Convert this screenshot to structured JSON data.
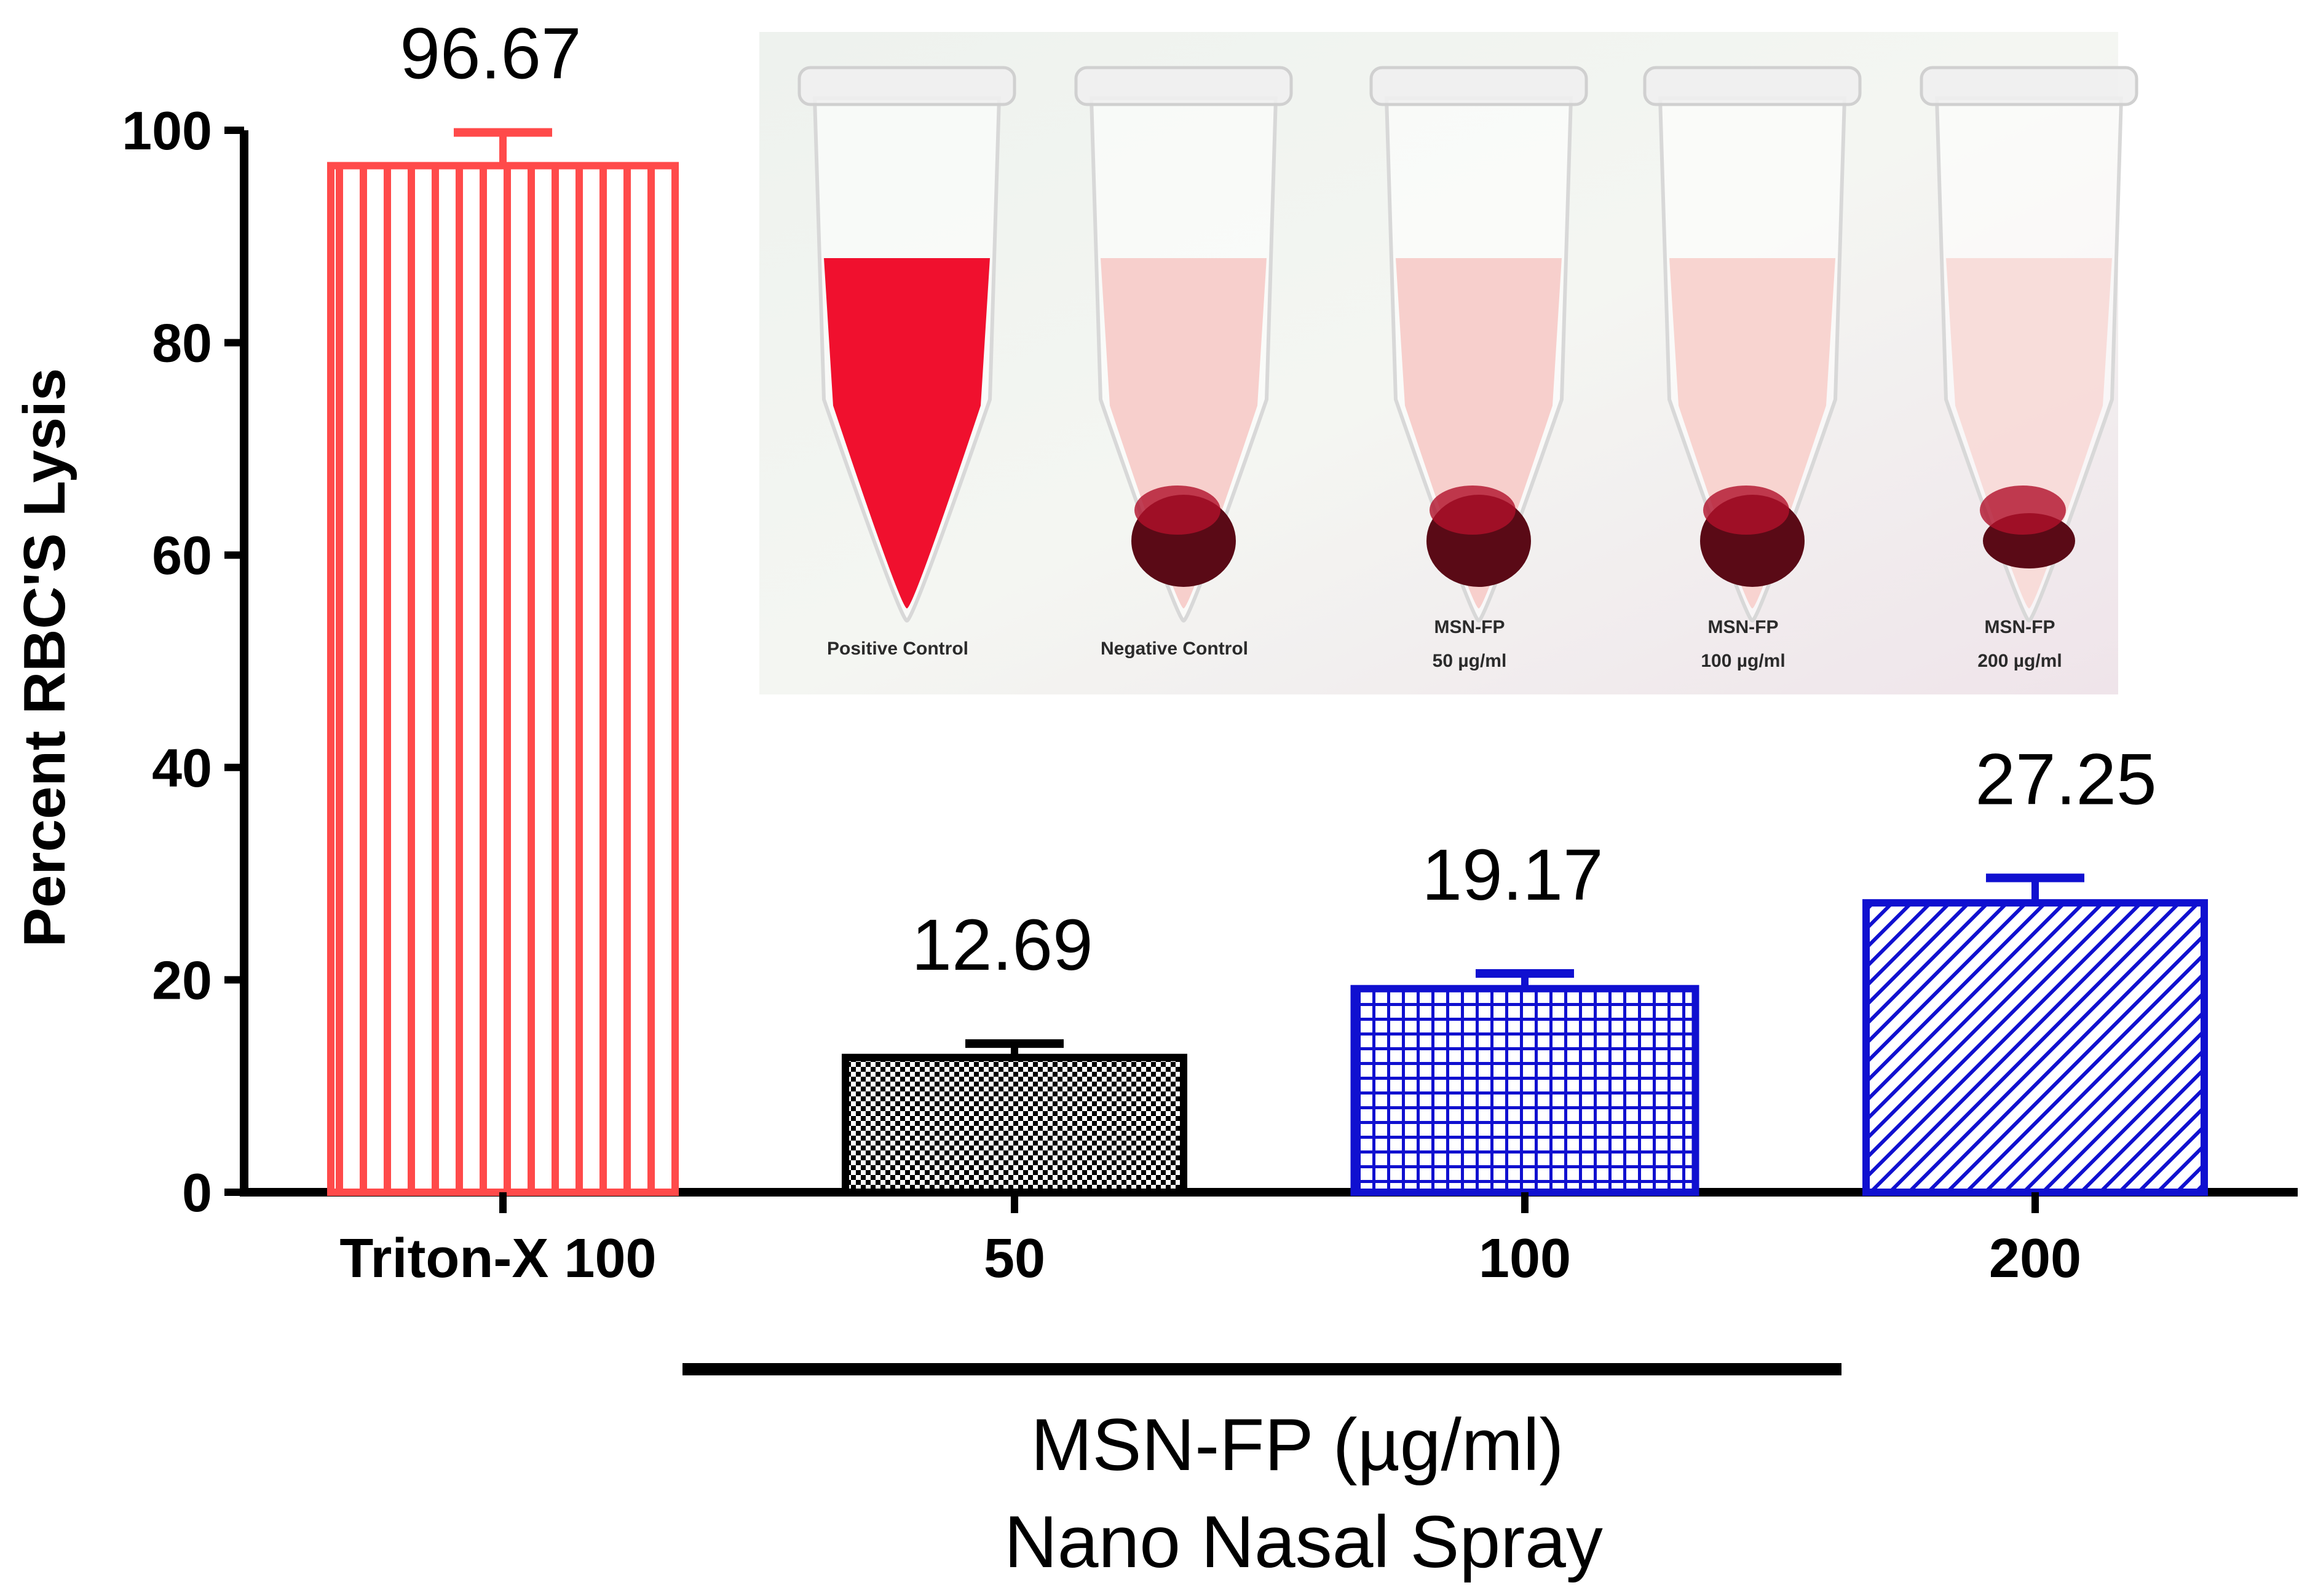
{
  "chart_data": {
    "type": "bar",
    "ylabel": "Percent RBC'S Lysis",
    "ylim": [
      0,
      100
    ],
    "yticks": [
      0,
      20,
      40,
      60,
      80,
      100
    ],
    "grid": false,
    "categories": [
      "Triton-X 100",
      "50",
      "100",
      "200"
    ],
    "values": [
      96.67,
      12.69,
      19.17,
      27.25
    ],
    "value_labels": [
      "96.67",
      "12.69",
      "19.17",
      "27.25"
    ],
    "error_upper": [
      99.8,
      14.0,
      20.6,
      29.6
    ],
    "bar_styles": [
      {
        "pattern": "vertical-stripes",
        "color": "#ff4a4a"
      },
      {
        "pattern": "checker",
        "color": "#000000"
      },
      {
        "pattern": "grid",
        "color": "#1010d0"
      },
      {
        "pattern": "diagonal",
        "color": "#1010d0"
      }
    ],
    "group_label": {
      "line1": "MSN-FP (µg/ml)",
      "line2": "Nano Nasal Spray",
      "categories": [
        "50",
        "100",
        "200"
      ]
    }
  },
  "inset_photo": {
    "tubes": [
      {
        "caption1": "Positive Control",
        "caption2": "",
        "fill": "#f0102e"
      },
      {
        "caption1": "Negative Control",
        "caption2": "",
        "fill": "#f6c4c0"
      },
      {
        "caption1": "MSN-FP",
        "caption2": "50 µg/ml",
        "fill": "#f6c4c0"
      },
      {
        "caption1": "MSN-FP",
        "caption2": "100 µg/ml",
        "fill": "#f7cac6"
      },
      {
        "caption1": "MSN-FP",
        "caption2": "200 µg/ml",
        "fill": "#f8d6d2"
      }
    ]
  }
}
